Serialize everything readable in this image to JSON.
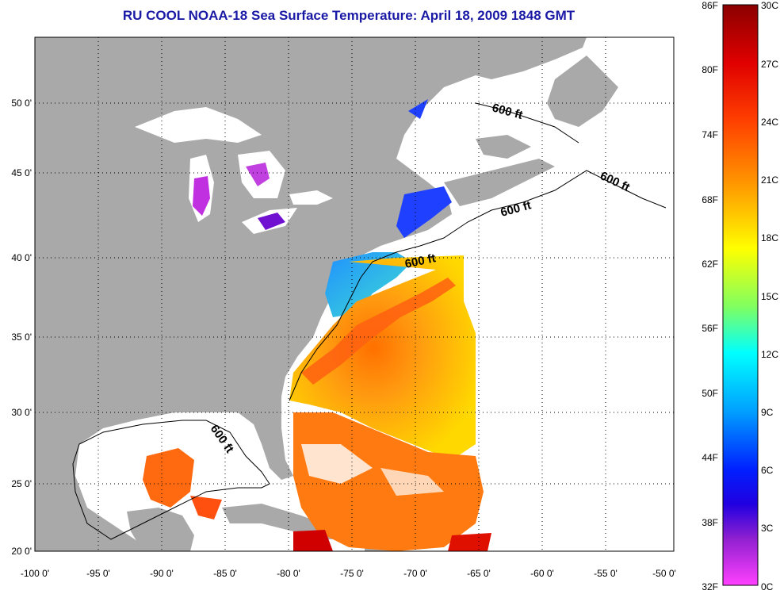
{
  "title": "RU COOL  NOAA-18  Sea Surface Temperature:  April 18, 2009 1848 GMT",
  "map": {
    "lon_ticks": [
      "-100 0'",
      "-95 0'",
      "-90 0'",
      "-85 0'",
      "-80 0'",
      "-75 0'",
      "-70 0'",
      "-65 0'",
      "-60 0'",
      "-55 0'",
      "-50 0'"
    ],
    "lat_ticks": [
      "50 0'",
      "45 0'",
      "40 0'",
      "35 0'",
      "30 0'",
      "25 0'",
      "20 0'"
    ],
    "contour_label": "600 ft",
    "colors": {
      "land": "#a9a9a9",
      "ocean_no_data": "#ffffff",
      "border": "#000000"
    }
  },
  "colorbar": {
    "f_labels": [
      "86F",
      "80F",
      "74F",
      "68F",
      "62F",
      "56F",
      "50F",
      "44F",
      "38F",
      "32F"
    ],
    "c_labels": [
      "30C",
      "27C",
      "24C",
      "21C",
      "18C",
      "15C",
      "12C",
      "9C",
      "6C",
      "3C",
      "0C"
    ],
    "colors_top_to_bottom": [
      "#8b0000",
      "#e00000",
      "#ff4000",
      "#ff8c00",
      "#ffd000",
      "#ffff00",
      "#c0ff40",
      "#40ff90",
      "#00ffff",
      "#00a0ff",
      "#0040ff",
      "#0000ff",
      "#8020d0",
      "#c020e0",
      "#ff40ff"
    ]
  }
}
